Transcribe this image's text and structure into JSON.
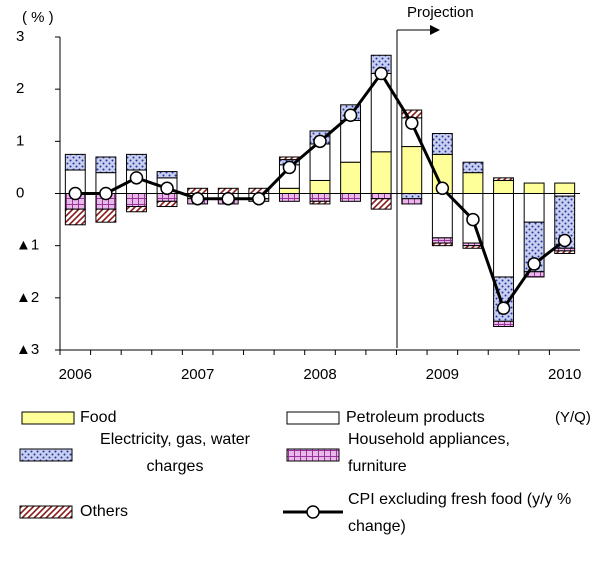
{
  "chart_data": {
    "type": "bar",
    "y_label": "( % )",
    "x_label": "(Y/Q)",
    "annotation": "Projection",
    "categories": [
      "2006",
      null,
      null,
      null,
      "2007",
      null,
      null,
      null,
      "2008",
      null,
      null,
      null,
      "2009",
      null,
      null,
      null,
      "2010"
    ],
    "ylim": [
      -3,
      3
    ],
    "yticks": [
      {
        "value": -3,
        "label": "▲3"
      },
      {
        "value": -2,
        "label": "▲2"
      },
      {
        "value": -1,
        "label": "▲1"
      },
      0,
      1,
      2,
      3
    ],
    "series": [
      {
        "name": "Food",
        "color": "#ffff99",
        "pattern": null,
        "values": [
          0,
          0,
          0,
          0,
          0,
          0,
          0,
          0.1,
          0.25,
          0.6,
          0.8,
          0.9,
          0.75,
          0.4,
          0.25,
          0.2,
          0.2
        ]
      },
      {
        "name": "Petroleum products",
        "color": "#ffffff",
        "pattern": null,
        "values": [
          0.45,
          0.4,
          0.45,
          0.3,
          -0.1,
          -0.1,
          -0.1,
          0.45,
          0.7,
          0.8,
          1.5,
          0.55,
          -0.85,
          -0.95,
          -1.6,
          -0.55,
          -0.05
        ]
      },
      {
        "name": "Electricity, gas, water charges",
        "color": "#c8cff0",
        "pattern": "dots",
        "values": [
          0.3,
          0.3,
          0.3,
          0.12,
          0,
          0,
          0,
          0.1,
          0.25,
          0.3,
          0.35,
          -0.1,
          0.4,
          0.2,
          -0.85,
          -0.95,
          -1.0
        ]
      },
      {
        "name": "Household appliances, furniture",
        "color": "#e8b8e8",
        "pattern": "grid",
        "values": [
          -0.3,
          -0.3,
          -0.25,
          -0.15,
          -0.1,
          -0.1,
          -0.05,
          -0.15,
          -0.15,
          -0.15,
          -0.1,
          -0.1,
          -0.1,
          -0.05,
          -0.1,
          -0.1,
          -0.05
        ]
      },
      {
        "name": "Others",
        "color": "#8b1a1a",
        "pattern": "hatch",
        "values": [
          -0.3,
          -0.25,
          -0.1,
          -0.1,
          0.1,
          0.1,
          0.1,
          0.05,
          -0.05,
          0,
          -0.2,
          0.15,
          -0.05,
          -0.05,
          0.05,
          0,
          -0.05
        ]
      }
    ],
    "line": {
      "name": "CPI excluding fresh food (y/y % change)",
      "color": "#000000",
      "values": [
        0,
        0,
        0.3,
        0.1,
        -0.1,
        -0.1,
        -0.1,
        0.5,
        1.0,
        1.5,
        2.3,
        1.35,
        0.1,
        -0.5,
        -2.2,
        -1.35,
        -0.9
      ]
    }
  }
}
